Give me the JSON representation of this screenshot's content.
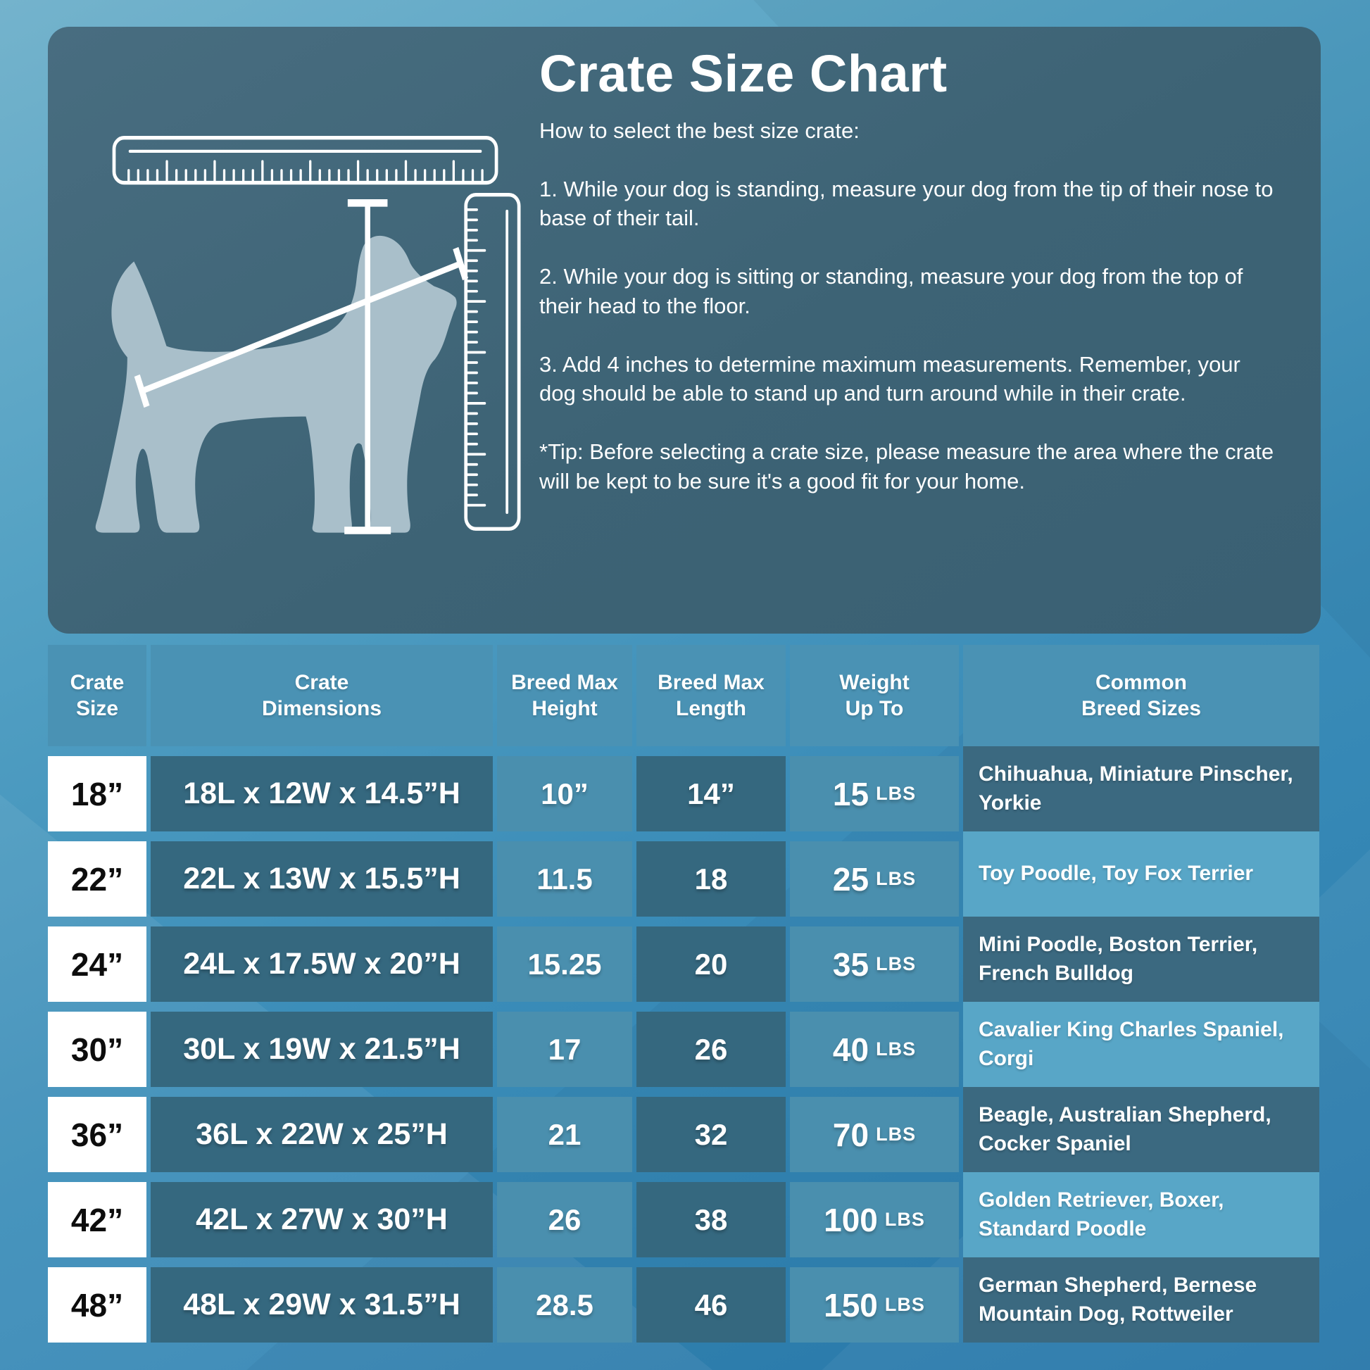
{
  "hero": {
    "title": "Crate Size Chart",
    "subtitle": "How to select the best size crate:",
    "steps": [
      "1. While your dog is standing, measure your dog from the tip of their nose to base of their tail.",
      "2. While your dog is sitting or standing, measure your dog from the top of their head to the floor.",
      "3. Add 4 inches to determine maximum measurements. Remember, your dog should be able to stand up and turn around while in their crate."
    ],
    "tip": "*Tip: Before selecting a crate size, please measure the area where the crate will be kept to be sure it's a good fit for your home.",
    "illustration": {
      "elements": [
        "horizontal-ruler",
        "vertical-ruler",
        "dog-silhouette",
        "length-measure-line",
        "height-measure-line"
      ]
    }
  },
  "table": {
    "headers": [
      [
        "Crate",
        "Size"
      ],
      [
        "Crate",
        "Dimensions"
      ],
      [
        "Breed Max",
        "Height"
      ],
      [
        "Breed Max",
        "Length"
      ],
      [
        "Weight",
        "Up To"
      ],
      [
        "Common",
        "Breed Sizes"
      ]
    ],
    "rows": [
      {
        "size": "18”",
        "dimensions": "18L x 12W x 14.5”H",
        "max_height": "10”",
        "max_length": "14”",
        "weight": "15",
        "weight_unit": "LBS",
        "breeds": "Chihuahua, Miniature Pinscher, Yorkie"
      },
      {
        "size": "22”",
        "dimensions": "22L x 13W x 15.5”H",
        "max_height": "11.5",
        "max_length": "18",
        "weight": "25",
        "weight_unit": "LBS",
        "breeds": "Toy Poodle, Toy Fox Terrier"
      },
      {
        "size": "24”",
        "dimensions": "24L x 17.5W x 20”H",
        "max_height": "15.25",
        "max_length": "20",
        "weight": "35",
        "weight_unit": "LBS",
        "breeds": "Mini Poodle, Boston Terrier, French Bulldog"
      },
      {
        "size": "30”",
        "dimensions": "30L x 19W x 21.5”H",
        "max_height": "17",
        "max_length": "26",
        "weight": "40",
        "weight_unit": "LBS",
        "breeds": "Cavalier King Charles Spaniel, Corgi"
      },
      {
        "size": "36”",
        "dimensions": "36L x 22W x 25”H",
        "max_height": "21",
        "max_length": "32",
        "weight": "70",
        "weight_unit": "LBS",
        "breeds": "Beagle, Australian Shepherd, Cocker Spaniel"
      },
      {
        "size": "42”",
        "dimensions": "42L x 27W x 30”H",
        "max_height": "26",
        "max_length": "38",
        "weight": "100",
        "weight_unit": "LBS",
        "breeds": "Golden Retriever, Boxer, Standard Poodle"
      },
      {
        "size": "48”",
        "dimensions": "48L x 29W x 31.5”H",
        "max_height": "28.5",
        "max_length": "46",
        "weight": "150",
        "weight_unit": "LBS",
        "breeds": "German Shepherd, Bernese Mountain Dog, Rottweiler"
      }
    ]
  },
  "colors": {
    "page_gradient_top": "#74b3cc",
    "page_gradient_bottom": "#2a7cae",
    "hero_panel": "#3d6375",
    "dog_silhouette": "#a9bfca",
    "measure_lines": "#ffffff",
    "header_band": "#4a92b4",
    "cell_dark": "#35687f",
    "cell_light": "#4a8fae",
    "breeds_dark": "#3b6980",
    "breeds_light": "#58a6c7",
    "size_cell_bg": "#ffffff",
    "size_cell_text": "#0d0d0d"
  }
}
